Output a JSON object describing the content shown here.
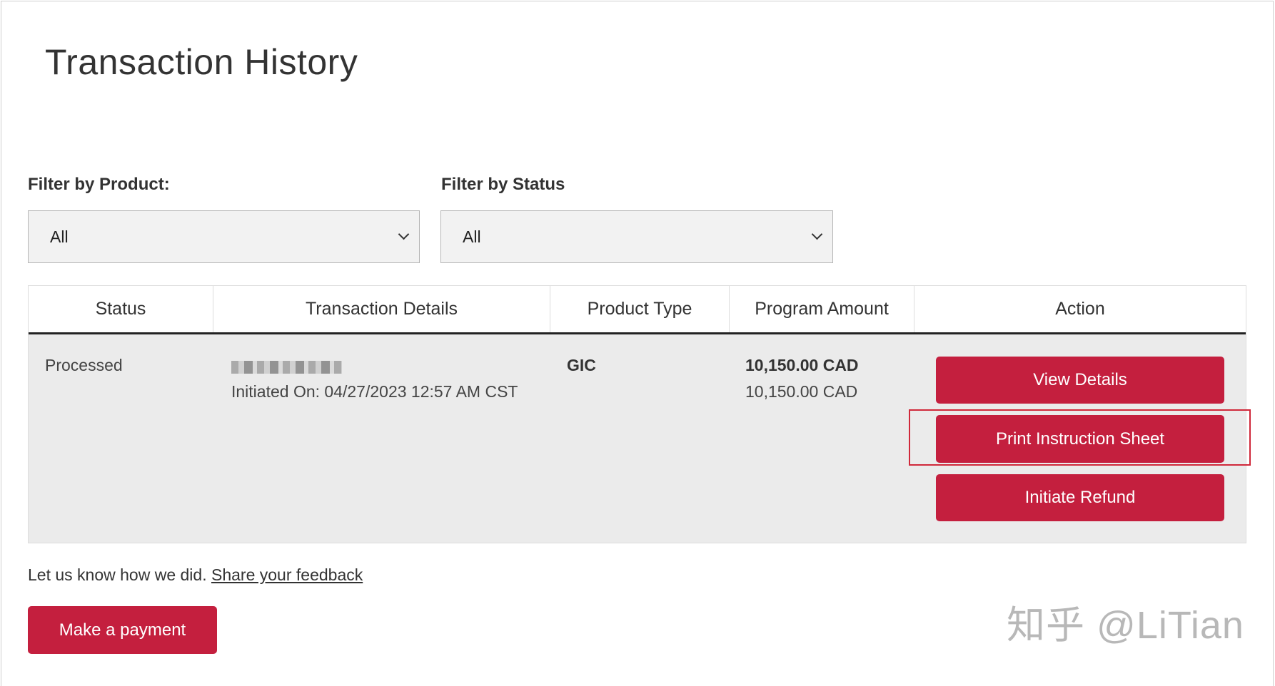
{
  "page": {
    "title": "Transaction History"
  },
  "filters": {
    "product": {
      "label": "Filter by Product:",
      "value": "All"
    },
    "status": {
      "label": "Filter by Status",
      "value": "All"
    }
  },
  "table": {
    "columns": [
      "Status",
      "Transaction Details",
      "Product Type",
      "Program Amount",
      "Action"
    ],
    "rows": [
      {
        "status": "Processed",
        "details_initiated": "Initiated On: 04/27/2023 12:57 AM CST",
        "product_type": "GIC",
        "amount_primary": "10,150.00 CAD",
        "amount_secondary": "10,150.00 CAD",
        "actions": [
          "View Details",
          "Print Instruction Sheet",
          "Initiate Refund"
        ]
      }
    ]
  },
  "feedback": {
    "text": "Let us know how we did.",
    "link": "Share your feedback"
  },
  "make_payment": "Make a payment",
  "watermark": "知乎 @LiTian",
  "colors": {
    "accent": "#c41f3e",
    "highlight": "#d0283a",
    "row_bg": "#ebebeb"
  }
}
